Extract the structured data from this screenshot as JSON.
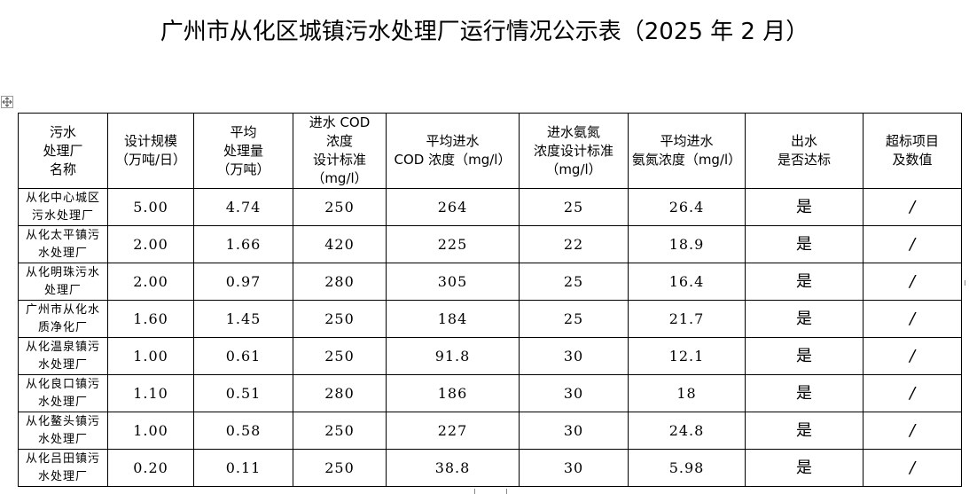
{
  "title": "广州市从化区城镇污水处理厂运行情况公示表（2025 年 2 月）",
  "table": {
    "headers": [
      [
        "污水",
        "处理厂",
        "名称"
      ],
      [
        "设计规模",
        "（万吨/日）"
      ],
      [
        "平均",
        "处理量",
        "（万吨）"
      ],
      [
        "进水 COD",
        "浓度",
        "设计标准",
        "（mg/l）"
      ],
      [
        "平均进水",
        "COD 浓度（mg/l）"
      ],
      [
        "进水氨氮",
        "浓度设计标准",
        "（mg/l）"
      ],
      [
        "平均进水",
        "氨氮浓度（mg/l）"
      ],
      [
        "出水",
        "是否达标"
      ],
      [
        "超标项目",
        "及数值"
      ]
    ],
    "rows": [
      {
        "name": [
          "从化中心城区",
          "污水处理厂"
        ],
        "design_capacity": "5.00",
        "avg_volume": "4.74",
        "cod_standard": "250",
        "avg_cod": "264",
        "nh3_standard": "25",
        "avg_nh3": "26.4",
        "compliant": "是",
        "exceed": "/"
      },
      {
        "name": [
          "从化太平镇污",
          "水处理厂"
        ],
        "design_capacity": "2.00",
        "avg_volume": "1.66",
        "cod_standard": "420",
        "avg_cod": "225",
        "nh3_standard": "22",
        "avg_nh3": "18.9",
        "compliant": "是",
        "exceed": "/"
      },
      {
        "name": [
          "从化明珠污水",
          "处理厂"
        ],
        "design_capacity": "2.00",
        "avg_volume": "0.97",
        "cod_standard": "280",
        "avg_cod": "305",
        "nh3_standard": "25",
        "avg_nh3": "16.4",
        "compliant": "是",
        "exceed": "/"
      },
      {
        "name": [
          "广州市从化水",
          "质净化厂"
        ],
        "design_capacity": "1.60",
        "avg_volume": "1.45",
        "cod_standard": "250",
        "avg_cod": "184",
        "nh3_standard": "25",
        "avg_nh3": "21.7",
        "compliant": "是",
        "exceed": "/"
      },
      {
        "name": [
          "从化温泉镇污",
          "水处理厂"
        ],
        "design_capacity": "1.00",
        "avg_volume": "0.61",
        "cod_standard": "250",
        "avg_cod": "91.8",
        "nh3_standard": "30",
        "avg_nh3": "12.1",
        "compliant": "是",
        "exceed": "/"
      },
      {
        "name": [
          "从化良口镇污",
          "水处理厂"
        ],
        "design_capacity": "1.10",
        "avg_volume": "0.51",
        "cod_standard": "280",
        "avg_cod": "186",
        "nh3_standard": "30",
        "avg_nh3": "18",
        "compliant": "是",
        "exceed": "/"
      },
      {
        "name": [
          "从化鳌头镇污",
          "水处理厂"
        ],
        "design_capacity": "1.00",
        "avg_volume": "0.58",
        "cod_standard": "250",
        "avg_cod": "227",
        "nh3_standard": "30",
        "avg_nh3": "24.8",
        "compliant": "是",
        "exceed": "/"
      },
      {
        "name": [
          "从化吕田镇污",
          "水处理厂"
        ],
        "design_capacity": "0.20",
        "avg_volume": "0.11",
        "cod_standard": "250",
        "avg_cod": "38.8",
        "nh3_standard": "30",
        "avg_nh3": "5.98",
        "compliant": "是",
        "exceed": "/"
      }
    ]
  },
  "icons": {
    "table_move_handle": "move-cross-icon"
  }
}
